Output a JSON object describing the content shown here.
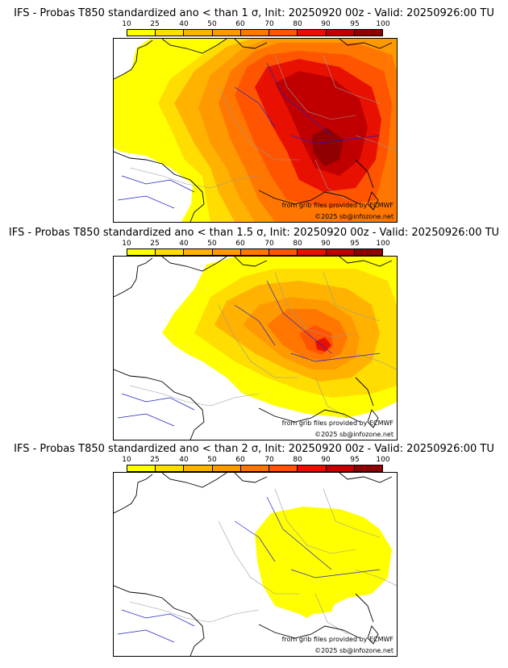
{
  "colorbar": {
    "labels": [
      "10",
      "25",
      "40",
      "50",
      "60",
      "70",
      "80",
      "90",
      "95",
      "100"
    ],
    "colors": [
      "#ffff00",
      "#ffdd00",
      "#ffb300",
      "#ff9900",
      "#ff7700",
      "#ff5500",
      "#e81000",
      "#c00000",
      "#900000",
      "#5a0000"
    ]
  },
  "colors": {
    "coast": "#000000",
    "rivers": "#2020d0",
    "borders": "#999999"
  },
  "panels": [
    {
      "title": "IFS - Probas T850  standardized ano < than 1 σ, Init: 20250920 00z - Valid: 20250926:00 TU",
      "credit_grib": "from grib files provided by ECMWF",
      "credit_copy": "©2025 sb@infozone.net"
    },
    {
      "title": "IFS - Probas T850  standardized ano < than 1.5 σ, Init: 20250920 00z - Valid: 20250926:00 TU",
      "credit_grib": "from grib files provided by ECMWF",
      "credit_copy": "©2025 sb@infozone.net"
    },
    {
      "title": "IFS - Probas T850  standardized ano < than 2 σ, Init: 20250920 00z - Valid: 20250926:00 TU",
      "credit_grib": "from grib files provided by ECMWF",
      "credit_copy": "©2025 sb@infozone.net"
    }
  ]
}
